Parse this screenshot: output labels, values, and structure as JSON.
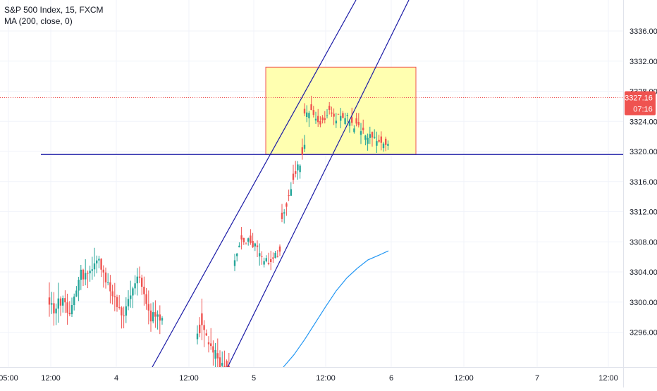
{
  "legend": {
    "symbol_line": "S&P 500 Index, 15, FXCM",
    "indicator_line": "MA (200, close, 0)"
  },
  "colors": {
    "up": "#26a69a",
    "down": "#ef5350",
    "grid": "#f0f3fa",
    "axis_text": "#131722",
    "trendline": "#1a1aa6",
    "ma": "#2196f3",
    "box_fill": "#ffffb0",
    "box_stroke": "#ef5350",
    "price_line": "#ef5350",
    "price_label_bg": "#ef5350"
  },
  "chart_data": {
    "type": "candlestick",
    "title": "S&P 500 Index, 15, FXCM",
    "y_axis": {
      "ticks": [
        3296,
        3300,
        3304,
        3308,
        3312,
        3316,
        3320,
        3324,
        3328,
        3332,
        3336
      ],
      "tick_labels": [
        "3296.00",
        "3300.00",
        "3304.00",
        "3308.00",
        "3312.00",
        "3316.00",
        "3320.00",
        "3324.00",
        "3328.00",
        "3332.00",
        "3336.00"
      ],
      "range": [
        3291.3,
        3340.0
      ]
    },
    "x_axis": {
      "tick_labels": [
        "05:00",
        "12:00",
        "4",
        "12:00",
        "5",
        "12:00",
        "6",
        "12:00",
        "7",
        "12:00"
      ]
    },
    "last_price": {
      "value": 3327.16,
      "label": "3327.16",
      "countdown": "07:16"
    },
    "horizontal_line": {
      "value": 3319.6
    },
    "rectangle": {
      "top": 3331.2,
      "bottom": 3319.6
    },
    "channel_lines": [
      {
        "points": [
          [
            3291.3,
            "4 15:00"
          ],
          [
            3340.0,
            "5 14:00"
          ]
        ]
      },
      {
        "points": [
          [
            3291.3,
            "5 01:00"
          ],
          [
            3340.0,
            "6 02:00"
          ]
        ]
      }
    ],
    "ma200": {
      "name": "MA (200, close, 0)",
      "values": [
        3291.3,
        3293.0,
        3295.0,
        3297.2,
        3299.4,
        3301.5,
        3303.2,
        3304.5,
        3305.6,
        3306.2,
        3306.8
      ]
    },
    "candles_summary": {
      "segment_1_lows_highs": [
        [
          3291.3,
          3303.4
        ],
        [
          3294.0,
          3302.0
        ],
        [
          3295.0,
          3303.5
        ]
      ],
      "rally_low": 3291.3,
      "rally_high": 3331.2,
      "consolidation_range": [
        3319.0,
        3331.2
      ]
    }
  }
}
